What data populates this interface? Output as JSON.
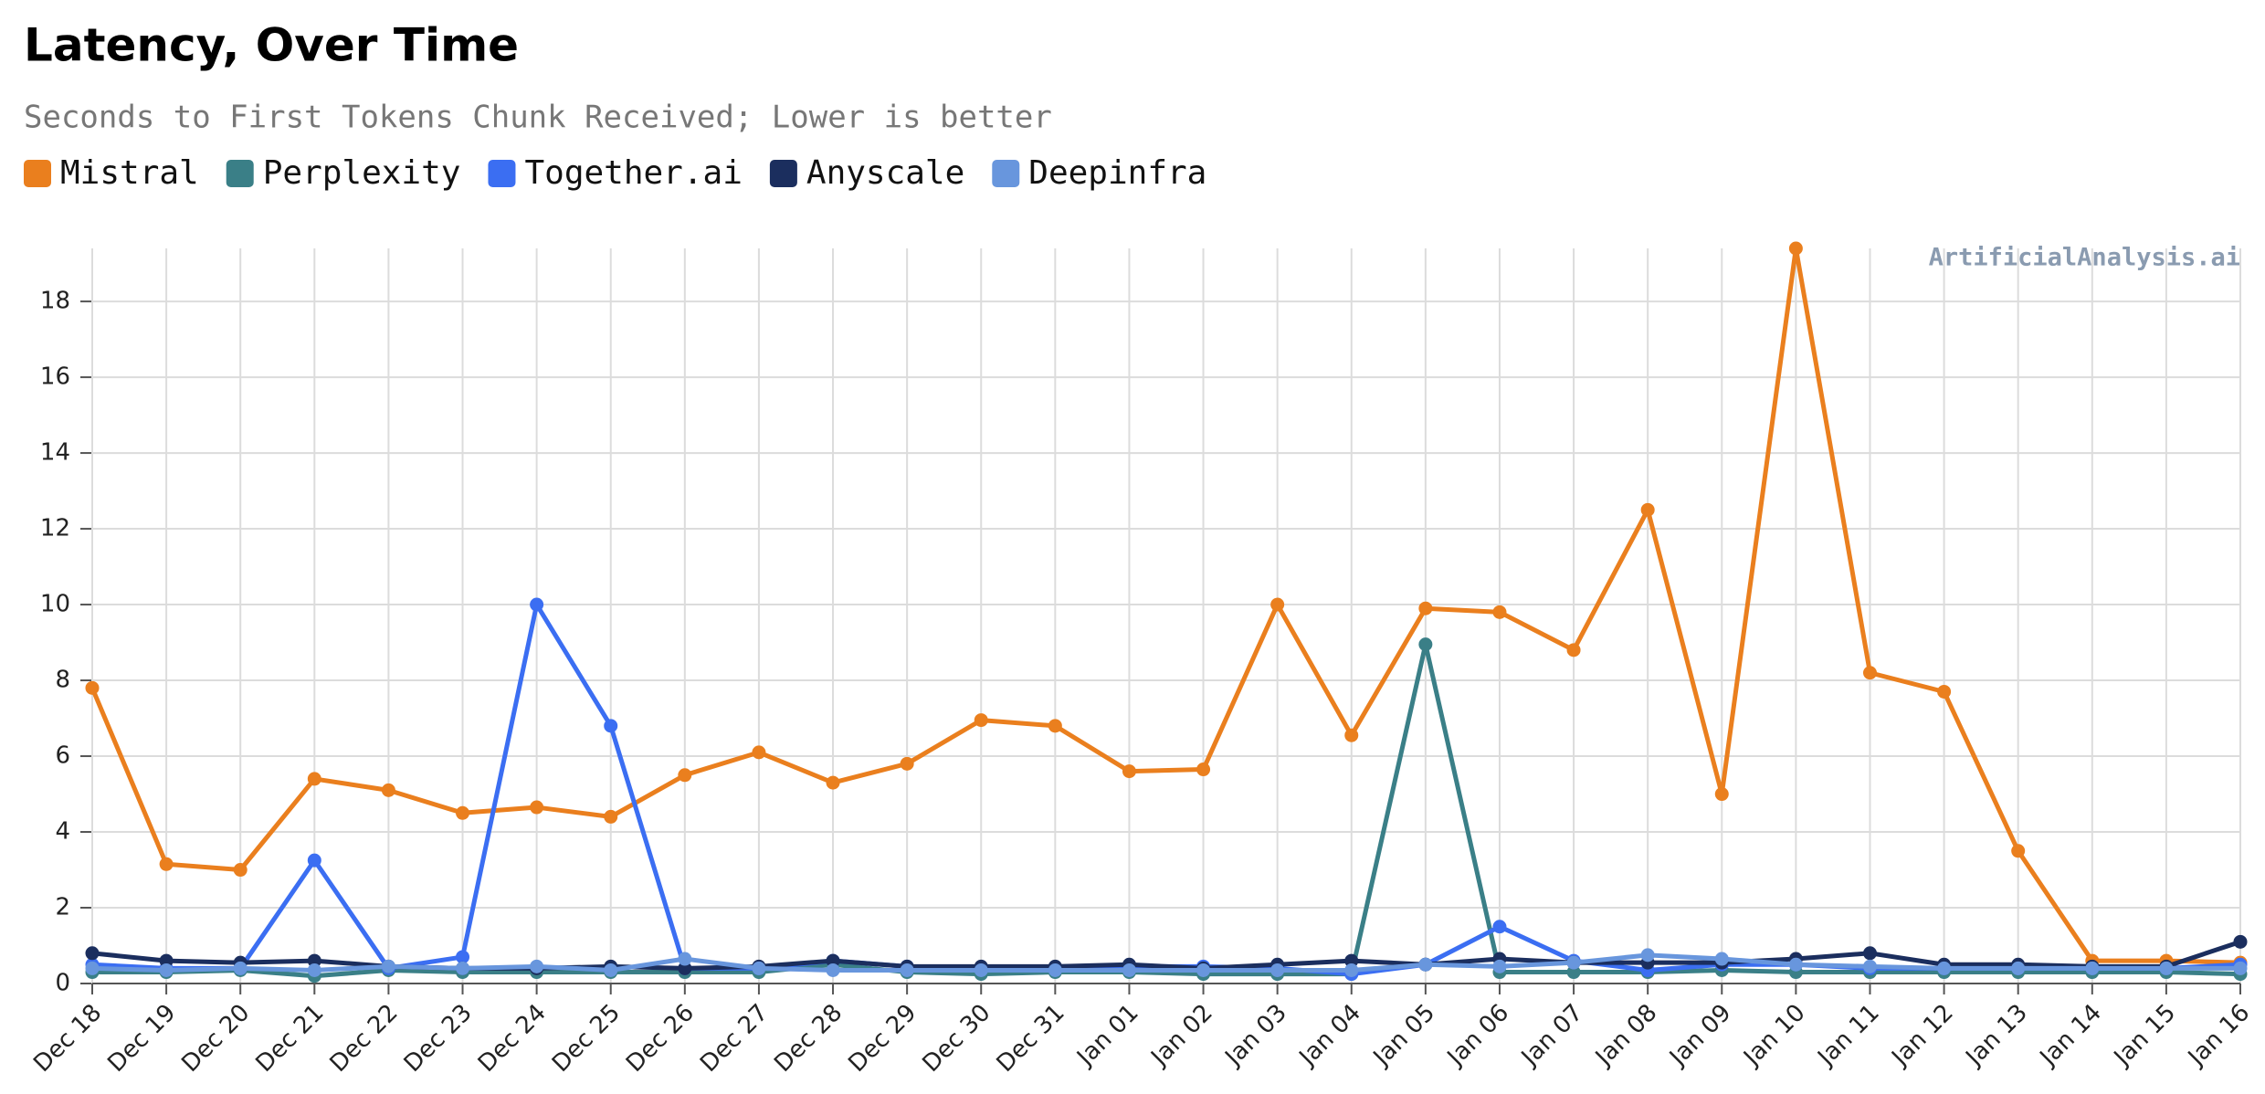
{
  "chart_data": {
    "type": "line",
    "title": "Latency, Over Time",
    "subtitle": "Seconds to First Tokens Chunk Received; Lower is better",
    "watermark": "ArtificialAnalysis.ai",
    "categories": [
      "Dec 18",
      "Dec 19",
      "Dec 20",
      "Dec 21",
      "Dec 22",
      "Dec 23",
      "Dec 24",
      "Dec 25",
      "Dec 26",
      "Dec 27",
      "Dec 28",
      "Dec 29",
      "Dec 30",
      "Dec 31",
      "Jan 01",
      "Jan 02",
      "Jan 03",
      "Jan 04",
      "Jan 05",
      "Jan 06",
      "Jan 07",
      "Jan 08",
      "Jan 09",
      "Jan 10",
      "Jan 11",
      "Jan 12",
      "Jan 13",
      "Jan 14",
      "Jan 15",
      "Jan 16"
    ],
    "series": [
      {
        "name": "Mistral",
        "color": "#ea7f1e",
        "values": [
          7.8,
          3.15,
          3.0,
          5.4,
          5.1,
          4.5,
          4.65,
          4.4,
          5.5,
          6.1,
          5.3,
          5.8,
          6.95,
          6.8,
          5.6,
          5.65,
          10.0,
          6.55,
          9.9,
          9.8,
          8.8,
          12.5,
          5.0,
          19.4,
          8.2,
          7.7,
          3.5,
          0.6,
          0.6,
          0.55
        ]
      },
      {
        "name": "Perplexity",
        "color": "#3a7f87",
        "values": [
          0.3,
          0.3,
          0.35,
          0.2,
          0.35,
          0.3,
          0.3,
          0.3,
          0.3,
          0.3,
          0.5,
          0.3,
          0.25,
          0.3,
          0.3,
          0.25,
          0.25,
          0.25,
          8.95,
          0.3,
          0.3,
          0.3,
          0.35,
          0.3,
          0.3,
          0.3,
          0.3,
          0.3,
          0.3,
          0.25
        ]
      },
      {
        "name": "Together.ai",
        "color": "#3b6ef2",
        "values": [
          0.5,
          0.4,
          0.4,
          3.25,
          0.4,
          0.7,
          10.0,
          6.8,
          0.4,
          0.4,
          0.6,
          0.45,
          0.4,
          0.4,
          0.45,
          0.45,
          0.4,
          0.25,
          0.5,
          1.5,
          0.6,
          0.35,
          0.5,
          0.5,
          0.4,
          0.4,
          0.4,
          0.4,
          0.4,
          0.5
        ]
      },
      {
        "name": "Anyscale",
        "color": "#1b2e5e",
        "values": [
          0.8,
          0.6,
          0.55,
          0.6,
          0.45,
          0.4,
          0.4,
          0.45,
          0.4,
          0.45,
          0.6,
          0.45,
          0.45,
          0.45,
          0.5,
          0.4,
          0.5,
          0.6,
          0.5,
          0.65,
          0.55,
          0.55,
          0.55,
          0.65,
          0.8,
          0.5,
          0.5,
          0.45,
          0.45,
          1.1
        ]
      },
      {
        "name": "Deepinfra",
        "color": "#6896dd",
        "values": [
          0.4,
          0.35,
          0.4,
          0.35,
          0.45,
          0.4,
          0.45,
          0.35,
          0.65,
          0.4,
          0.35,
          0.35,
          0.35,
          0.35,
          0.35,
          0.35,
          0.35,
          0.35,
          0.5,
          0.45,
          0.55,
          0.75,
          0.65,
          0.5,
          0.45,
          0.4,
          0.4,
          0.4,
          0.4,
          0.4
        ]
      }
    ],
    "ylim": [
      0,
      19.4
    ],
    "yticks": [
      0,
      2,
      4,
      6,
      8,
      10,
      12,
      14,
      16,
      18
    ],
    "grid": true
  }
}
